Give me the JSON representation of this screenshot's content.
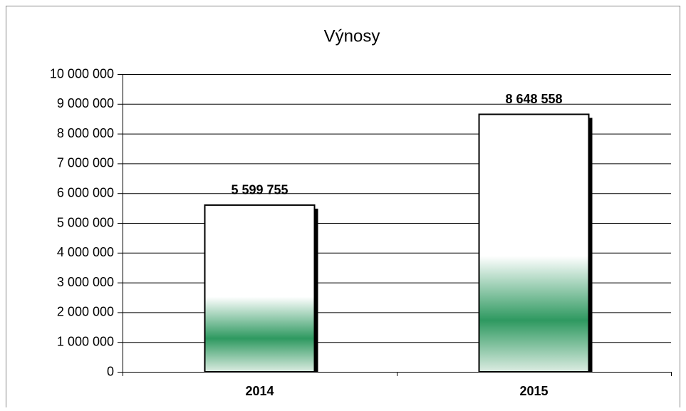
{
  "chart_data": {
    "type": "bar",
    "title": "Výnosy",
    "categories": [
      "2014",
      "2015"
    ],
    "values": [
      5599755,
      8648558
    ],
    "value_labels": [
      "5 599 755",
      "8 648 558"
    ],
    "color": "#2e9960",
    "ylim": [
      0,
      10000000
    ],
    "yticks": [
      0,
      {
        "value": 1000000,
        "label": "1 000 000"
      },
      {
        "value": 2000000,
        "label": "2 000 000"
      },
      {
        "value": 3000000,
        "label": "3 000 000"
      },
      {
        "value": 4000000,
        "label": "4 000 000"
      },
      {
        "value": 5000000,
        "label": "5 000 000"
      },
      {
        "value": 6000000,
        "label": "6 000 000"
      },
      {
        "value": 7000000,
        "label": "7 000 000"
      },
      {
        "value": 8000000,
        "label": "8 000 000"
      },
      {
        "value": 9000000,
        "label": "9 000 000"
      },
      {
        "value": 10000000,
        "label": "10 000 000"
      }
    ],
    "grid": true
  }
}
